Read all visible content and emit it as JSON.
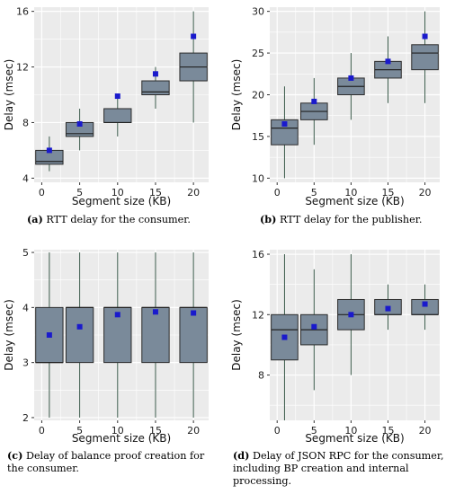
{
  "chart_data": [
    {
      "type": "box",
      "panel_label": "(a)",
      "caption": "RTT delay for the consumer.",
      "xlabel": "Segment size (KB)",
      "ylabel": "Delay (msec)",
      "xlim": [
        -1,
        22
      ],
      "ylim": [
        3.7,
        16.3
      ],
      "xticks": [
        0,
        5,
        10,
        15,
        20
      ],
      "yticks": [
        4,
        8,
        12,
        16
      ],
      "grid": true,
      "boxes": [
        {
          "x": 1,
          "min": 4.5,
          "q1": 5.0,
          "median": 5.2,
          "q3": 6.0,
          "max": 7.0,
          "mean": 6.0
        },
        {
          "x": 5,
          "min": 6.0,
          "q1": 7.0,
          "median": 7.2,
          "q3": 8.0,
          "max": 9.0,
          "mean": 7.9
        },
        {
          "x": 10,
          "min": 7.0,
          "q1": 8.0,
          "median": 8.0,
          "q3": 9.0,
          "max": 10.0,
          "mean": 9.9
        },
        {
          "x": 15,
          "min": 9.0,
          "q1": 10.0,
          "median": 10.2,
          "q3": 11.0,
          "max": 12.0,
          "mean": 11.5
        },
        {
          "x": 20,
          "min": 8.0,
          "q1": 11.0,
          "median": 12.0,
          "q3": 13.0,
          "max": 16.0,
          "mean": 14.2
        }
      ]
    },
    {
      "type": "box",
      "panel_label": "(b)",
      "caption": "RTT delay for the publisher.",
      "xlabel": "Segment size (KB)",
      "ylabel": "Delay (msec)",
      "xlim": [
        -1,
        22
      ],
      "ylim": [
        9.5,
        30.5
      ],
      "xticks": [
        0,
        5,
        10,
        15,
        20
      ],
      "yticks": [
        10,
        15,
        20,
        25,
        30
      ],
      "grid": true,
      "boxes": [
        {
          "x": 1,
          "min": 10.0,
          "q1": 14.0,
          "median": 16.0,
          "q3": 17.0,
          "max": 21.0,
          "mean": 16.5
        },
        {
          "x": 5,
          "min": 14.0,
          "q1": 17.0,
          "median": 18.0,
          "q3": 19.0,
          "max": 22.0,
          "mean": 19.2
        },
        {
          "x": 10,
          "min": 17.0,
          "q1": 20.0,
          "median": 21.0,
          "q3": 22.0,
          "max": 25.0,
          "mean": 22.0
        },
        {
          "x": 15,
          "min": 19.0,
          "q1": 22.0,
          "median": 23.0,
          "q3": 24.0,
          "max": 27.0,
          "mean": 24.0
        },
        {
          "x": 20,
          "min": 19.0,
          "q1": 23.0,
          "median": 25.0,
          "q3": 26.0,
          "max": 30.0,
          "mean": 27.0
        }
      ]
    },
    {
      "type": "box",
      "panel_label": "(c)",
      "caption": "Delay of balance proof creation for the consumer.",
      "xlabel": "Segment size (KB)",
      "ylabel": "Delay (msec)",
      "xlim": [
        -1,
        22
      ],
      "ylim": [
        1.95,
        5.05
      ],
      "xticks": [
        0,
        5,
        10,
        15,
        20
      ],
      "yticks": [
        2,
        3,
        4,
        5
      ],
      "grid": true,
      "boxes": [
        {
          "x": 1,
          "min": 2.0,
          "q1": 3.0,
          "median": 3.0,
          "q3": 4.0,
          "max": 5.0,
          "mean": 3.5
        },
        {
          "x": 5,
          "min": 2.0,
          "q1": 3.0,
          "median": 4.0,
          "q3": 4.0,
          "max": 5.0,
          "mean": 3.65
        },
        {
          "x": 10,
          "min": 2.0,
          "q1": 3.0,
          "median": 4.0,
          "q3": 4.0,
          "max": 5.0,
          "mean": 3.87
        },
        {
          "x": 15,
          "min": 2.0,
          "q1": 3.0,
          "median": 4.0,
          "q3": 4.0,
          "max": 5.0,
          "mean": 3.92
        },
        {
          "x": 20,
          "min": 2.0,
          "q1": 3.0,
          "median": 4.0,
          "q3": 4.0,
          "max": 5.0,
          "mean": 3.9
        }
      ]
    },
    {
      "type": "box",
      "panel_label": "(d)",
      "caption": "Delay of JSON RPC for the consumer, including BP creation and internal processing.",
      "xlabel": "Segment size (KB)",
      "ylabel": "Delay (msec)",
      "xlim": [
        -1,
        22
      ],
      "ylim": [
        5.0,
        16.3
      ],
      "xticks": [
        0,
        5,
        10,
        15,
        20
      ],
      "yticks": [
        8,
        12,
        16
      ],
      "grid": true,
      "boxes": [
        {
          "x": 1,
          "min": 5.0,
          "q1": 9.0,
          "median": 11.0,
          "q3": 12.0,
          "max": 16.0,
          "mean": 10.5
        },
        {
          "x": 5,
          "min": 7.0,
          "q1": 10.0,
          "median": 11.0,
          "q3": 12.0,
          "max": 15.0,
          "mean": 11.2
        },
        {
          "x": 10,
          "min": 8.0,
          "q1": 11.0,
          "median": 12.0,
          "q3": 13.0,
          "max": 16.0,
          "mean": 12.0
        },
        {
          "x": 15,
          "min": 11.0,
          "q1": 12.0,
          "median": 12.0,
          "q3": 13.0,
          "max": 14.0,
          "mean": 12.4
        },
        {
          "x": 20,
          "min": 11.0,
          "q1": 12.0,
          "median": 12.0,
          "q3": 13.0,
          "max": 14.0,
          "mean": 12.7
        }
      ]
    }
  ],
  "colors": {
    "plot_bg": "#ebebeb",
    "grid": "#ffffff",
    "box_fill": "#7a8a9a",
    "box_stroke": "#2b2b2b",
    "whisker": "#3a5a4a",
    "mean_marker": "#1a1acc"
  }
}
